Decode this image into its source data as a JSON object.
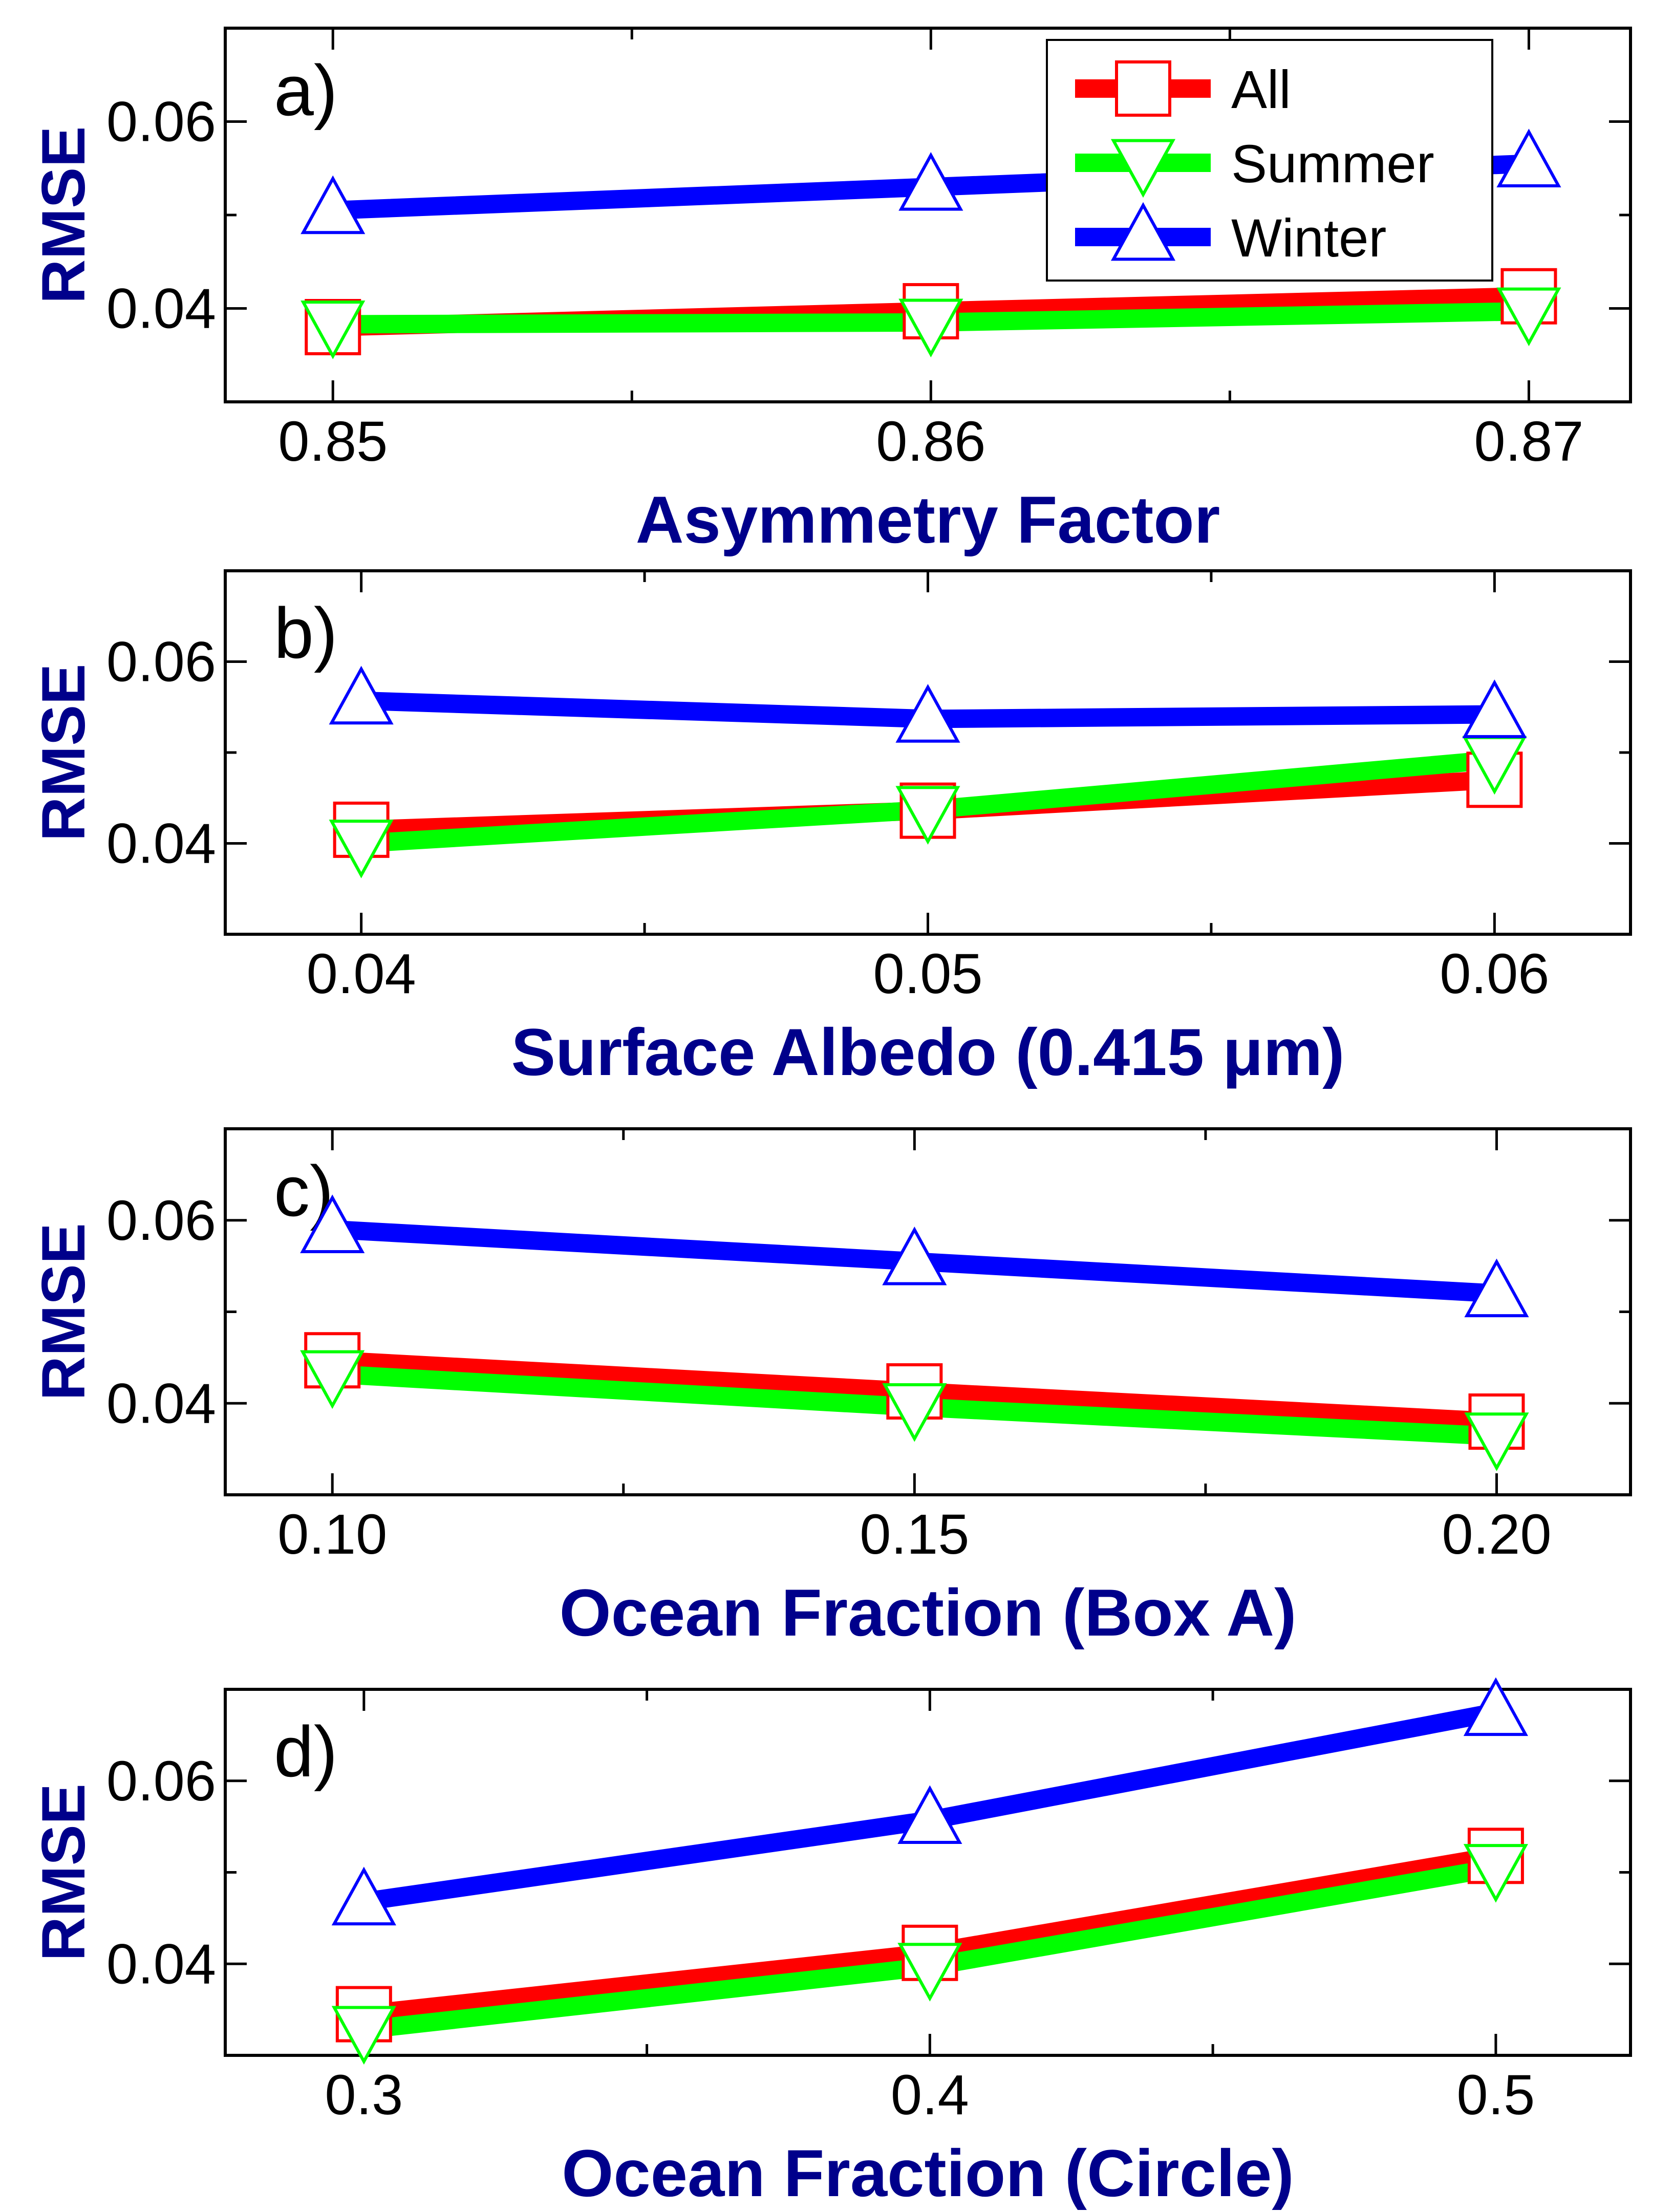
{
  "chart_data": [
    {
      "type": "line",
      "panel_label": "a)",
      "xlabel": "Asymmetry Factor",
      "ylabel": "RMSE",
      "x": [
        0.85,
        0.86,
        0.87
      ],
      "x_tick_labels": [
        "0.85",
        "0.86",
        "0.87"
      ],
      "xlim": [
        0.8482,
        0.8717
      ],
      "ylim": [
        0.03,
        0.07
      ],
      "y_tick_labels": [
        "0.04",
        "0.06"
      ],
      "y_ticks": [
        0.04,
        0.06
      ],
      "series": [
        {
          "name": "All",
          "values": [
            0.038,
            0.0397,
            0.0413
          ]
        },
        {
          "name": "Summer",
          "values": [
            0.0383,
            0.0385,
            0.0397
          ]
        },
        {
          "name": "Winter",
          "values": [
            0.0505,
            0.053,
            0.0555
          ]
        }
      ]
    },
    {
      "type": "line",
      "panel_label": "b)",
      "xlabel": "Surface Albedo (0.415 μm)",
      "ylabel": "RMSE",
      "x": [
        0.04,
        0.05,
        0.06
      ],
      "x_tick_labels": [
        "0.04",
        "0.05",
        "0.06"
      ],
      "xlim": [
        0.0376,
        0.0624
      ],
      "ylim": [
        0.03,
        0.07
      ],
      "y_tick_labels": [
        "0.04",
        "0.06"
      ],
      "y_ticks": [
        0.04,
        0.06
      ],
      "series": [
        {
          "name": "All",
          "values": [
            0.0415,
            0.0436,
            0.047
          ]
        },
        {
          "name": "Summer",
          "values": [
            0.04,
            0.0437,
            0.0492
          ]
        },
        {
          "name": "Winter",
          "values": [
            0.0557,
            0.0537,
            0.0542
          ]
        }
      ]
    },
    {
      "type": "line",
      "panel_label": "c)",
      "xlabel": "Ocean Fraction (Box A)",
      "ylabel": "RMSE",
      "x": [
        0.1,
        0.15,
        0.2
      ],
      "x_tick_labels": [
        "0.10",
        "0.15",
        "0.20"
      ],
      "xlim": [
        0.0908,
        0.2115
      ],
      "ylim": [
        0.03,
        0.07
      ],
      "y_tick_labels": [
        "0.04",
        "0.06"
      ],
      "y_ticks": [
        0.04,
        0.06
      ],
      "series": [
        {
          "name": "All",
          "values": [
            0.0447,
            0.0413,
            0.038
          ]
        },
        {
          "name": "Summer",
          "values": [
            0.0432,
            0.0396,
            0.0364
          ]
        },
        {
          "name": "Winter",
          "values": [
            0.059,
            0.0555,
            0.052
          ]
        }
      ]
    },
    {
      "type": "line",
      "panel_label": "d)",
      "xlabel": "Ocean Fraction (Circle)",
      "ylabel": "RMSE",
      "x": [
        0.3,
        0.4,
        0.5
      ],
      "x_tick_labels": [
        "0.3",
        "0.4",
        "0.5"
      ],
      "xlim": [
        0.2755,
        0.5238
      ],
      "ylim": [
        0.03,
        0.07
      ],
      "y_tick_labels": [
        "0.04",
        "0.06"
      ],
      "y_ticks": [
        0.04,
        0.06
      ],
      "series": [
        {
          "name": "All",
          "values": [
            0.0345,
            0.0412,
            0.0518
          ]
        },
        {
          "name": "Summer",
          "values": [
            0.0328,
            0.0397,
            0.0505
          ]
        },
        {
          "name": "Winter",
          "values": [
            0.0468,
            0.0557,
            0.0675
          ]
        }
      ]
    }
  ],
  "legend": {
    "entries": [
      "All",
      "Summer",
      "Winter"
    ],
    "location": "top-right of panel a"
  },
  "colors": {
    "All": {
      "line": "#ff0000",
      "marker": "square"
    },
    "Summer": {
      "line": "#00ff00",
      "marker": "triangle-down"
    },
    "Winter": {
      "line": "#0000ff",
      "marker": "triangle-up"
    },
    "axis_title": "#00008B"
  }
}
